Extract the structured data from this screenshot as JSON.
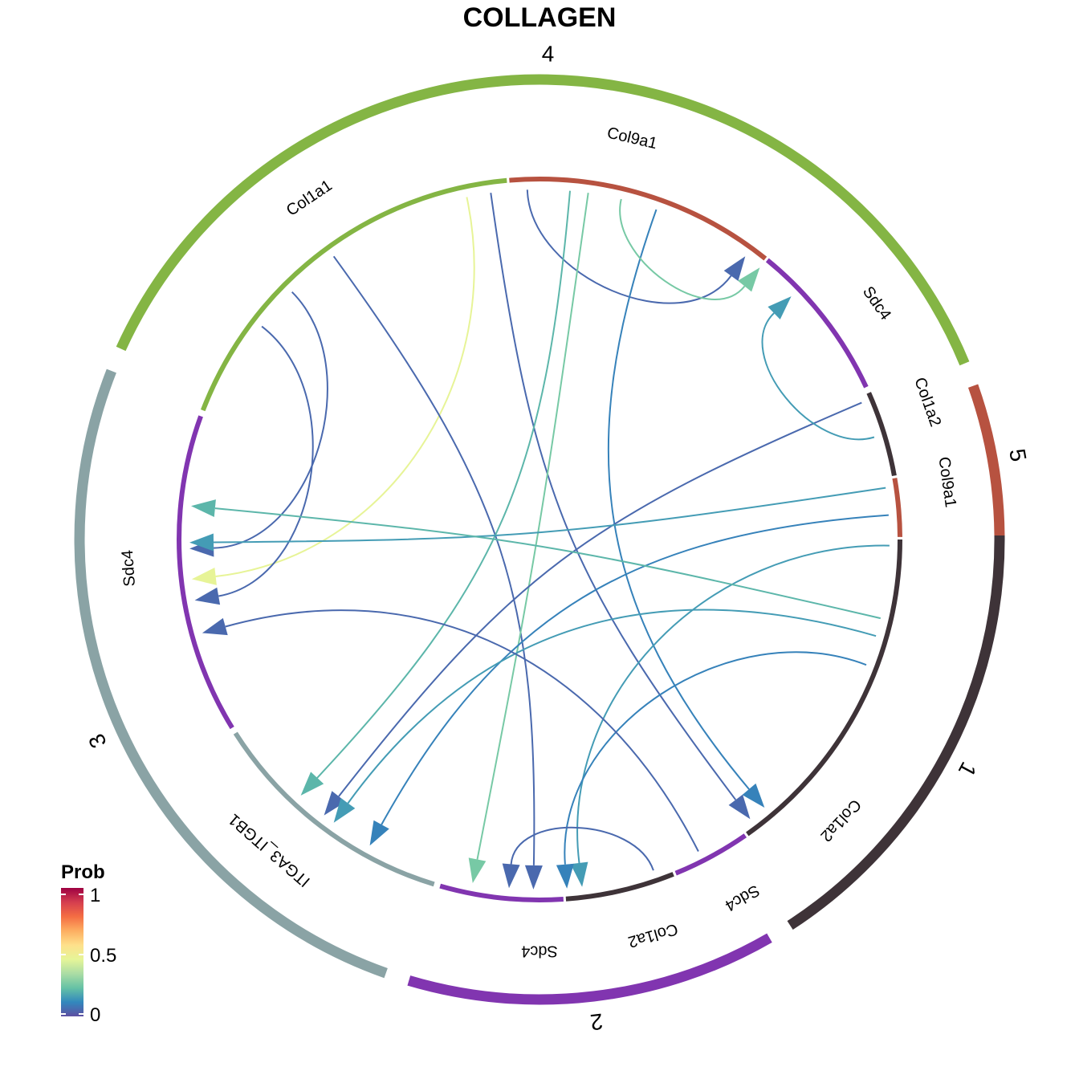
{
  "title": "COLLAGEN",
  "legend": {
    "title": "Prob",
    "ticks": [
      "1",
      "0.5",
      "0"
    ]
  },
  "colors": {
    "group_1": "#3e3338",
    "group_2": "#8135b0",
    "group_3": "#8aa3a5",
    "group_4": "#84b544",
    "group_5": "#b75240",
    "prob_scale": [
      "#5e4fa2",
      "#3288bd",
      "#66c2a5",
      "#abdda4",
      "#e6f598",
      "#fee08b",
      "#fdae61",
      "#f46d43",
      "#d53e4f",
      "#9e0142"
    ]
  },
  "chart_data": {
    "type": "chord",
    "groups": [
      {
        "id": "1",
        "label": "1",
        "color": "#3e3338"
      },
      {
        "id": "2",
        "label": "2",
        "color": "#8135b0"
      },
      {
        "id": "3",
        "label": "3",
        "color": "#8aa3a5"
      },
      {
        "id": "4",
        "label": "4",
        "color": "#84b544"
      },
      {
        "id": "5",
        "label": "5",
        "color": "#b75240"
      }
    ],
    "sectors": [
      {
        "label": "Col1a2",
        "group": "1",
        "color": "#3e3338"
      },
      {
        "label": "Sdc4",
        "group": "1",
        "color": "#8135b0"
      },
      {
        "label": "Col1a2",
        "group": "2",
        "color": "#3e3338"
      },
      {
        "label": "Sdc4",
        "group": "2",
        "color": "#8135b0"
      },
      {
        "label": "ITGA3_ITGB1",
        "group": "3",
        "color": "#8aa3a5"
      },
      {
        "label": "Sdc4",
        "group": "3",
        "color": "#8135b0"
      },
      {
        "label": "Col1a1",
        "group": "4",
        "color": "#84b544"
      },
      {
        "label": "Col9a1",
        "group": "4",
        "color": "#b75240"
      },
      {
        "label": "Sdc4",
        "group": "4",
        "color": "#8135b0"
      },
      {
        "label": "Col1a2",
        "group": "5",
        "color": "#3e3338"
      },
      {
        "label": "Col9a1",
        "group": "5",
        "color": "#b75240"
      }
    ],
    "links": [
      {
        "source": "4 Col1a1",
        "target": "3 Sdc4",
        "prob": 0.05
      },
      {
        "source": "4 Col1a1",
        "target": "3 Sdc4",
        "prob": 0.45
      },
      {
        "source": "4 Col1a1",
        "target": "3 Sdc4",
        "prob": 0.05
      },
      {
        "source": "4 Col1a1",
        "target": "1 Sdc4",
        "prob": 0.05
      },
      {
        "source": "4 Col1a1",
        "target": "2 Sdc4",
        "prob": 0.05
      },
      {
        "source": "4 Col1a1",
        "target": "4 Sdc4",
        "prob": 0.05
      },
      {
        "source": "4 Col9a1",
        "target": "3 ITGA3_ITGB1",
        "prob": 0.2
      },
      {
        "source": "4 Col9a1",
        "target": "2 Sdc4",
        "prob": 0.25
      },
      {
        "source": "4 Col9a1",
        "target": "1 Sdc4",
        "prob": 0.1
      },
      {
        "source": "4 Col9a1",
        "target": "4 Sdc4",
        "prob": 0.25
      },
      {
        "source": "5 Col1a2",
        "target": "3 ITGA3_ITGB1",
        "prob": 0.05
      },
      {
        "source": "5 Col1a2",
        "target": "4 Sdc4",
        "prob": 0.15
      },
      {
        "source": "5 Col9a1",
        "target": "3 Sdc4",
        "prob": 0.15
      },
      {
        "source": "5 Col9a1",
        "target": "3 ITGA3_ITGB1",
        "prob": 0.1
      },
      {
        "source": "5 Col9a1",
        "target": "2 Sdc4",
        "prob": 0.15
      },
      {
        "source": "1 Col1a2",
        "target": "3 Sdc4",
        "prob": 0.2
      },
      {
        "source": "1 Col1a2",
        "target": "3 ITGA3_ITGB1",
        "prob": 0.15
      },
      {
        "source": "1 Col1a2",
        "target": "2 Sdc4",
        "prob": 0.1
      },
      {
        "source": "2 Col1a2",
        "target": "3 Sdc4",
        "prob": 0.05
      },
      {
        "source": "2 Col1a2",
        "target": "2 Sdc4",
        "prob": 0.05
      }
    ]
  }
}
